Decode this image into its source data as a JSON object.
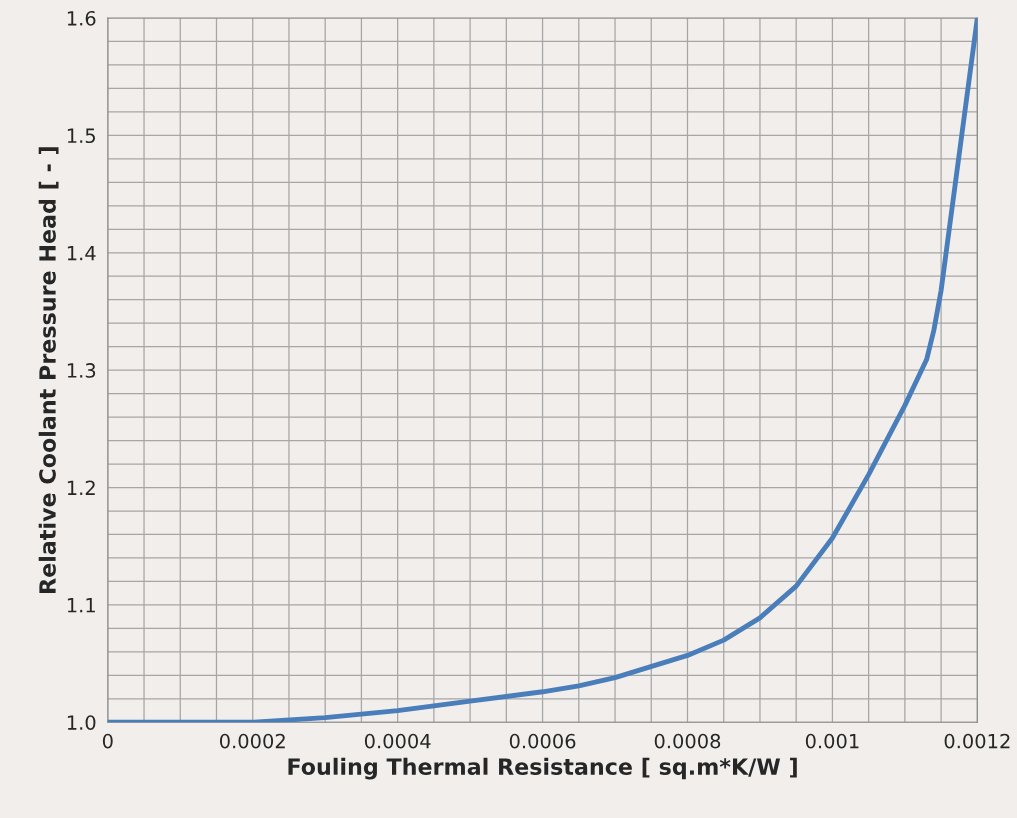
{
  "chart_data": {
    "type": "line",
    "xlabel": "Fouling Thermal Resistance [ sq.m*K/W ]",
    "ylabel": "Relative Coolant Pressure Head [ - ]",
    "x": [
      0,
      0.0001,
      0.0002,
      0.0003,
      0.0004,
      0.0005,
      0.0006,
      0.00065,
      0.0007,
      0.0008,
      0.00085,
      0.0009,
      0.00095,
      0.001,
      0.00105,
      0.0011,
      0.00113,
      0.00114,
      0.00115,
      0.0012
    ],
    "series": [
      {
        "color": "#4a7ebb",
        "values": [
          1.0,
          1.0,
          1.0,
          1.004,
          1.01,
          1.018,
          1.026,
          1.031,
          1.038,
          1.057,
          1.07,
          1.089,
          1.116,
          1.157,
          1.211,
          1.27,
          1.309,
          1.334,
          1.368,
          1.6
        ]
      }
    ],
    "xlim": [
      0,
      0.0012
    ],
    "xticks": [
      0,
      0.0002,
      0.0004,
      0.0006,
      0.0008,
      0.001,
      0.0012
    ],
    "ylim": [
      1.0,
      1.6
    ],
    "yticks": [
      {
        "value": 1.0,
        "label": "1.0"
      },
      1.1,
      1.2,
      1.3,
      1.4,
      1.5,
      1.6
    ],
    "grid": true,
    "marker": "none",
    "line_style": "solid"
  }
}
